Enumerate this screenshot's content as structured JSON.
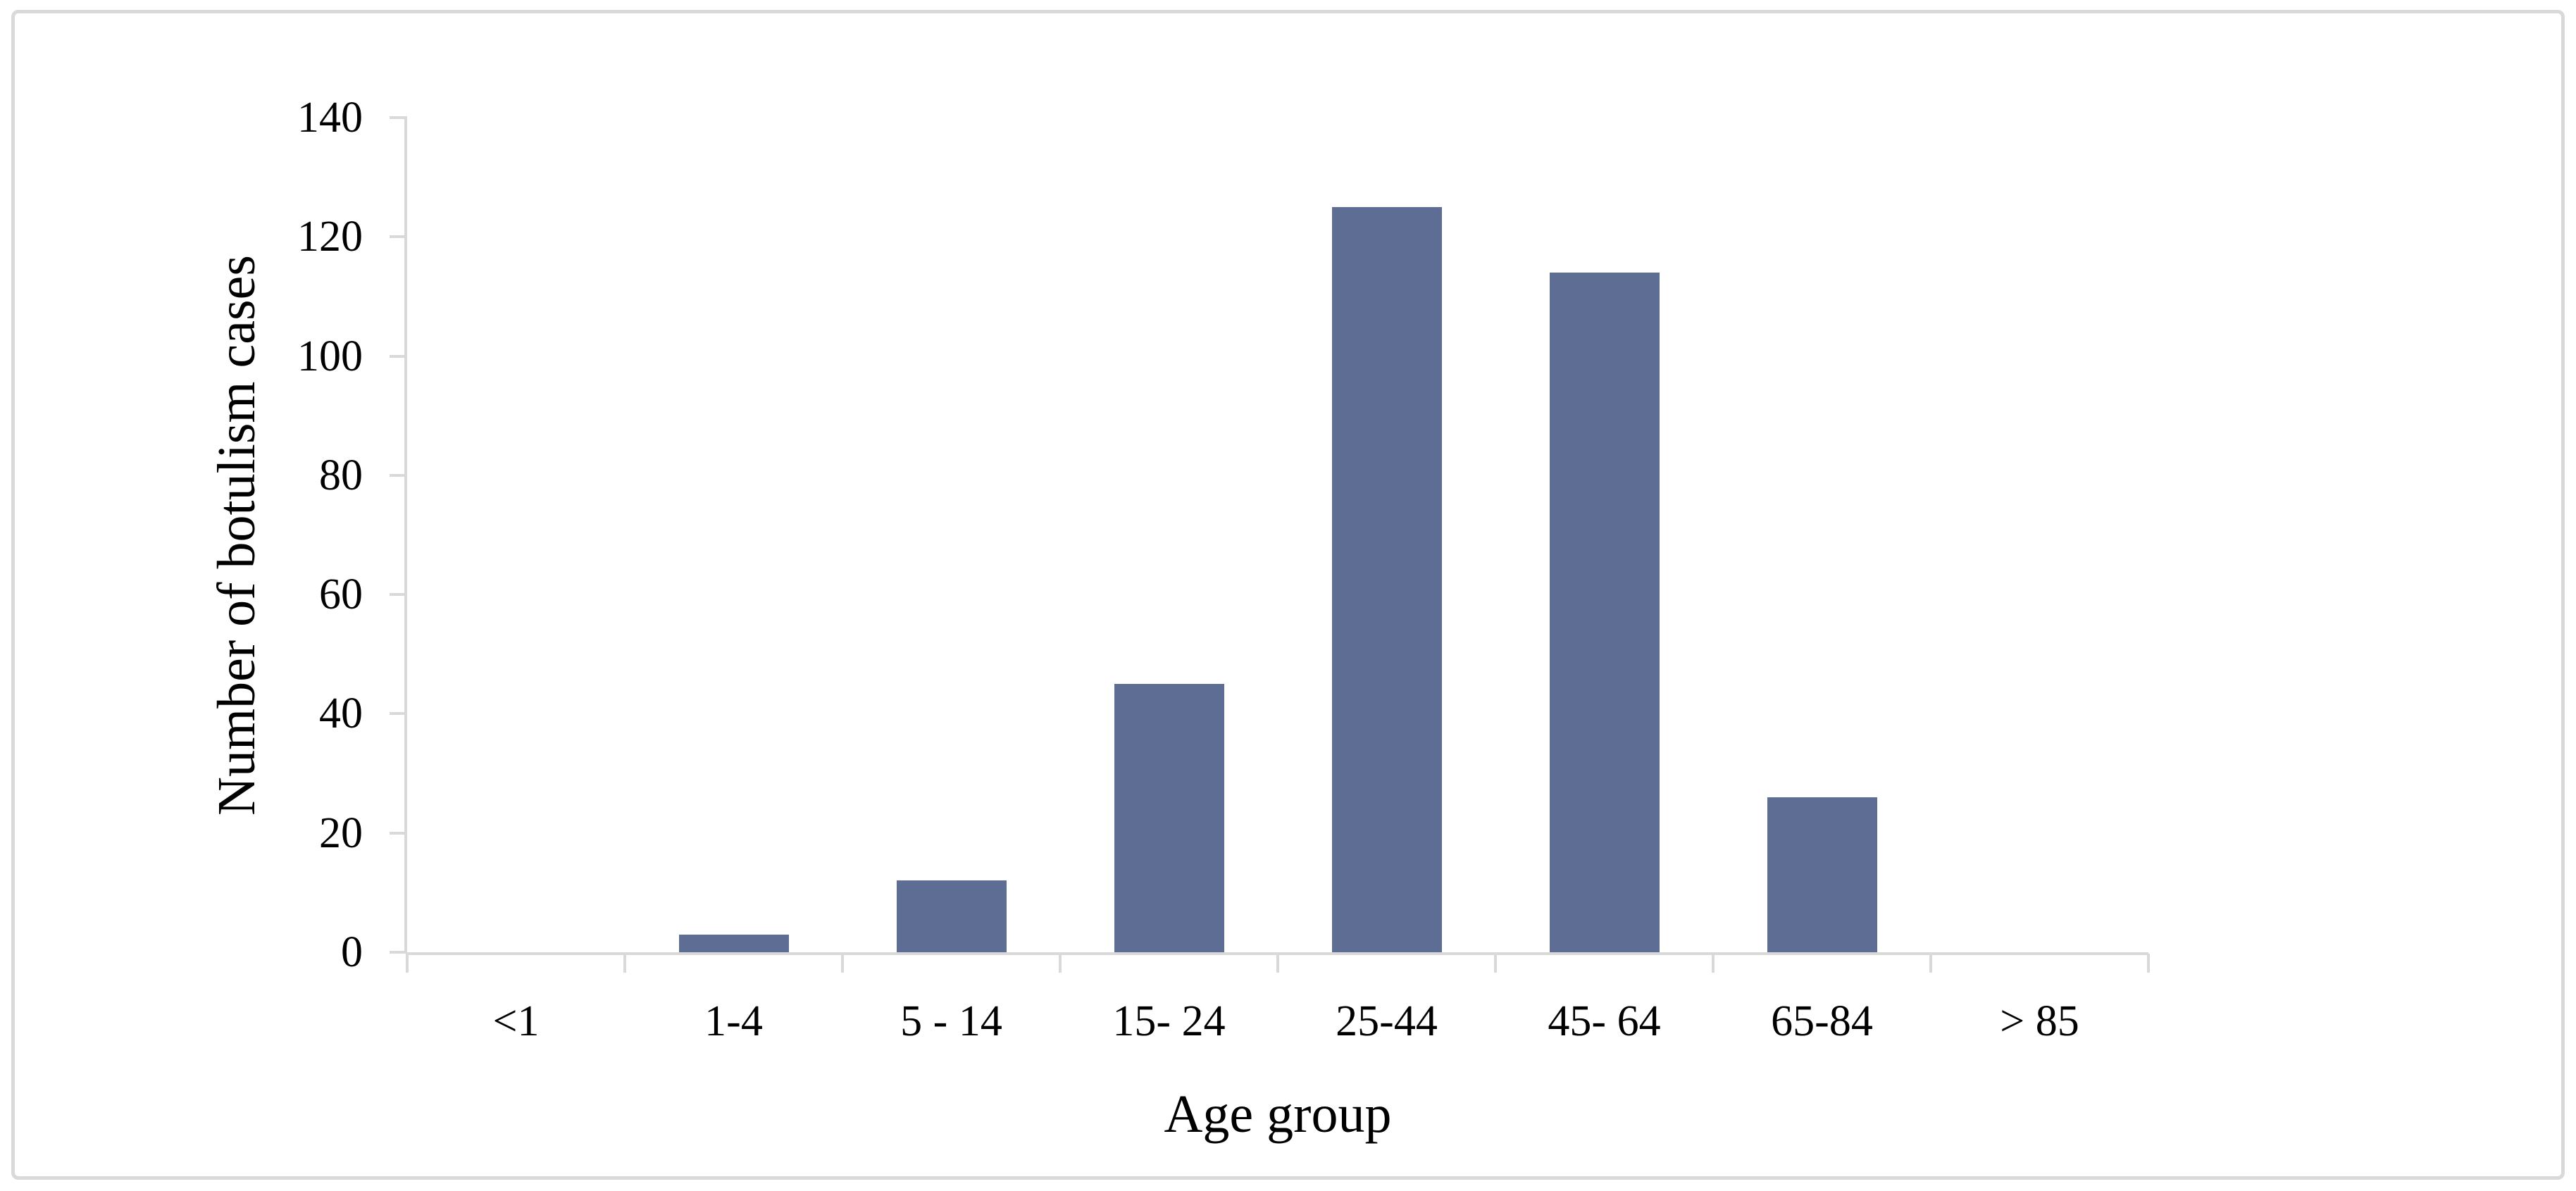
{
  "figure": {
    "background": "#ffffff",
    "border_color": "#d9d9d9"
  },
  "chart_data": {
    "type": "bar",
    "title": "",
    "xlabel": "Age group",
    "ylabel": "Number of botulism cases",
    "categories": [
      "<1",
      "1-4",
      "5 - 14",
      "15- 24",
      "25-44",
      "45- 64",
      "65-84",
      "> 85"
    ],
    "values": [
      0,
      3,
      12,
      45,
      125,
      114,
      26,
      0
    ],
    "ylim": [
      0,
      140
    ],
    "ytick_step": 20,
    "y_tick_labels": [
      "0",
      "20",
      "40",
      "60",
      "80",
      "100",
      "120",
      "140"
    ],
    "grid": false,
    "legend": "none",
    "bar_color": "#5e6d93",
    "axis_color": "#d9d9d9"
  }
}
